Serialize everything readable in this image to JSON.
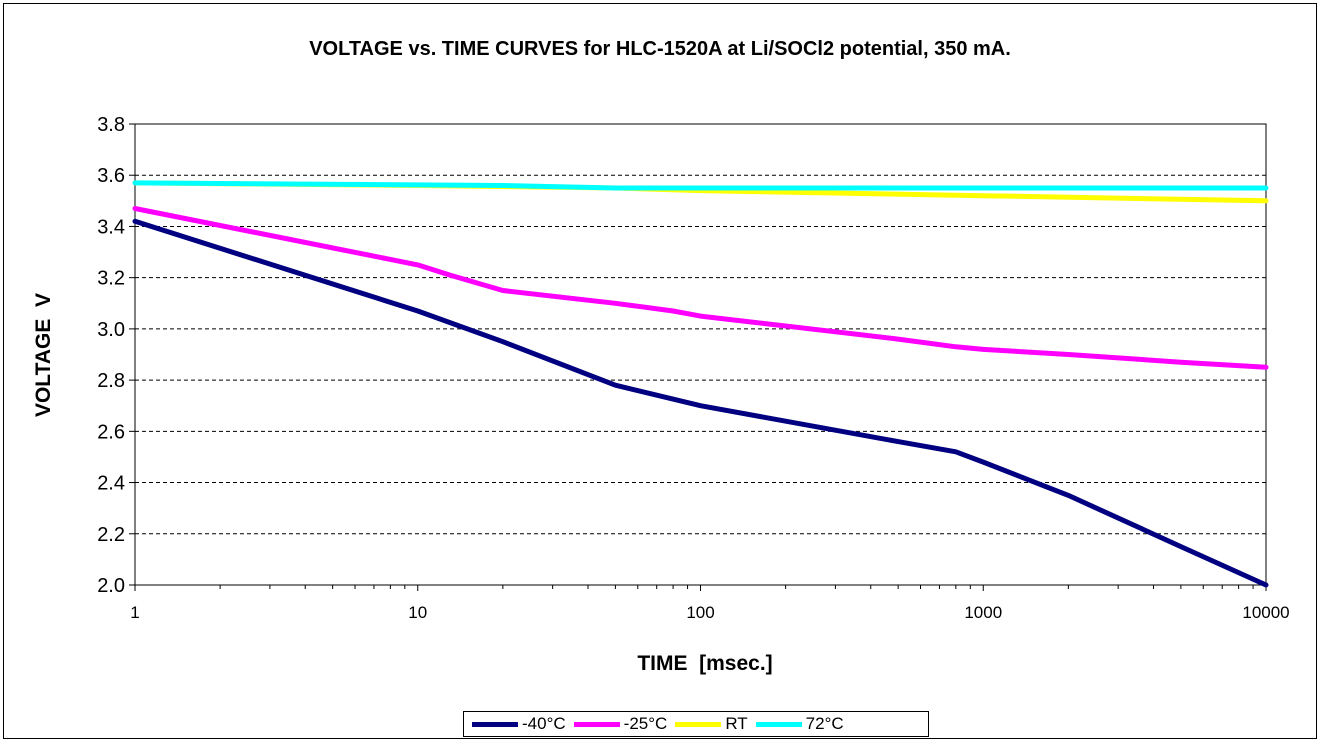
{
  "chart_data": {
    "type": "line",
    "title": "VOLTAGE vs. TIME CURVES for HLC-1520A at Li/SOCl2 potential, 350 mA.",
    "xlabel": "TIME  [msec.]",
    "ylabel": "VOLTAGE  V",
    "xscale": "log",
    "xlim": [
      1,
      10000
    ],
    "ylim": [
      2.0,
      3.8
    ],
    "xticks": [
      "1",
      "10",
      "100",
      "1000",
      "10000"
    ],
    "yticks": [
      "2.0",
      "2.2",
      "2.4",
      "2.6",
      "2.8",
      "3.0",
      "3.2",
      "3.4",
      "3.6",
      "3.8"
    ],
    "grid": "horizontal dashed",
    "legend_position": "bottom",
    "series": [
      {
        "name": "-40°C",
        "color": "#000080",
        "x": [
          1,
          10,
          20,
          50,
          100,
          500,
          800,
          1000,
          2000,
          5000,
          10000
        ],
        "y": [
          3.42,
          3.07,
          2.95,
          2.78,
          2.7,
          2.56,
          2.52,
          2.48,
          2.35,
          2.15,
          2.0
        ]
      },
      {
        "name": "-25°C",
        "color": "#ff00ff",
        "x": [
          1,
          10,
          13,
          20,
          50,
          80,
          100,
          500,
          800,
          1000,
          2000,
          5000,
          10000
        ],
        "y": [
          3.47,
          3.25,
          3.21,
          3.15,
          3.1,
          3.07,
          3.05,
          2.96,
          2.93,
          2.92,
          2.9,
          2.87,
          2.85
        ]
      },
      {
        "name": "RT",
        "color": "#ffff00",
        "x": [
          1,
          10,
          50,
          100,
          1000,
          10000
        ],
        "y": [
          3.57,
          3.56,
          3.55,
          3.54,
          3.52,
          3.5
        ]
      },
      {
        "name": "72°C",
        "color": "#00ffff",
        "x": [
          1,
          20,
          50,
          10000
        ],
        "y": [
          3.57,
          3.56,
          3.55,
          3.55
        ]
      }
    ]
  }
}
